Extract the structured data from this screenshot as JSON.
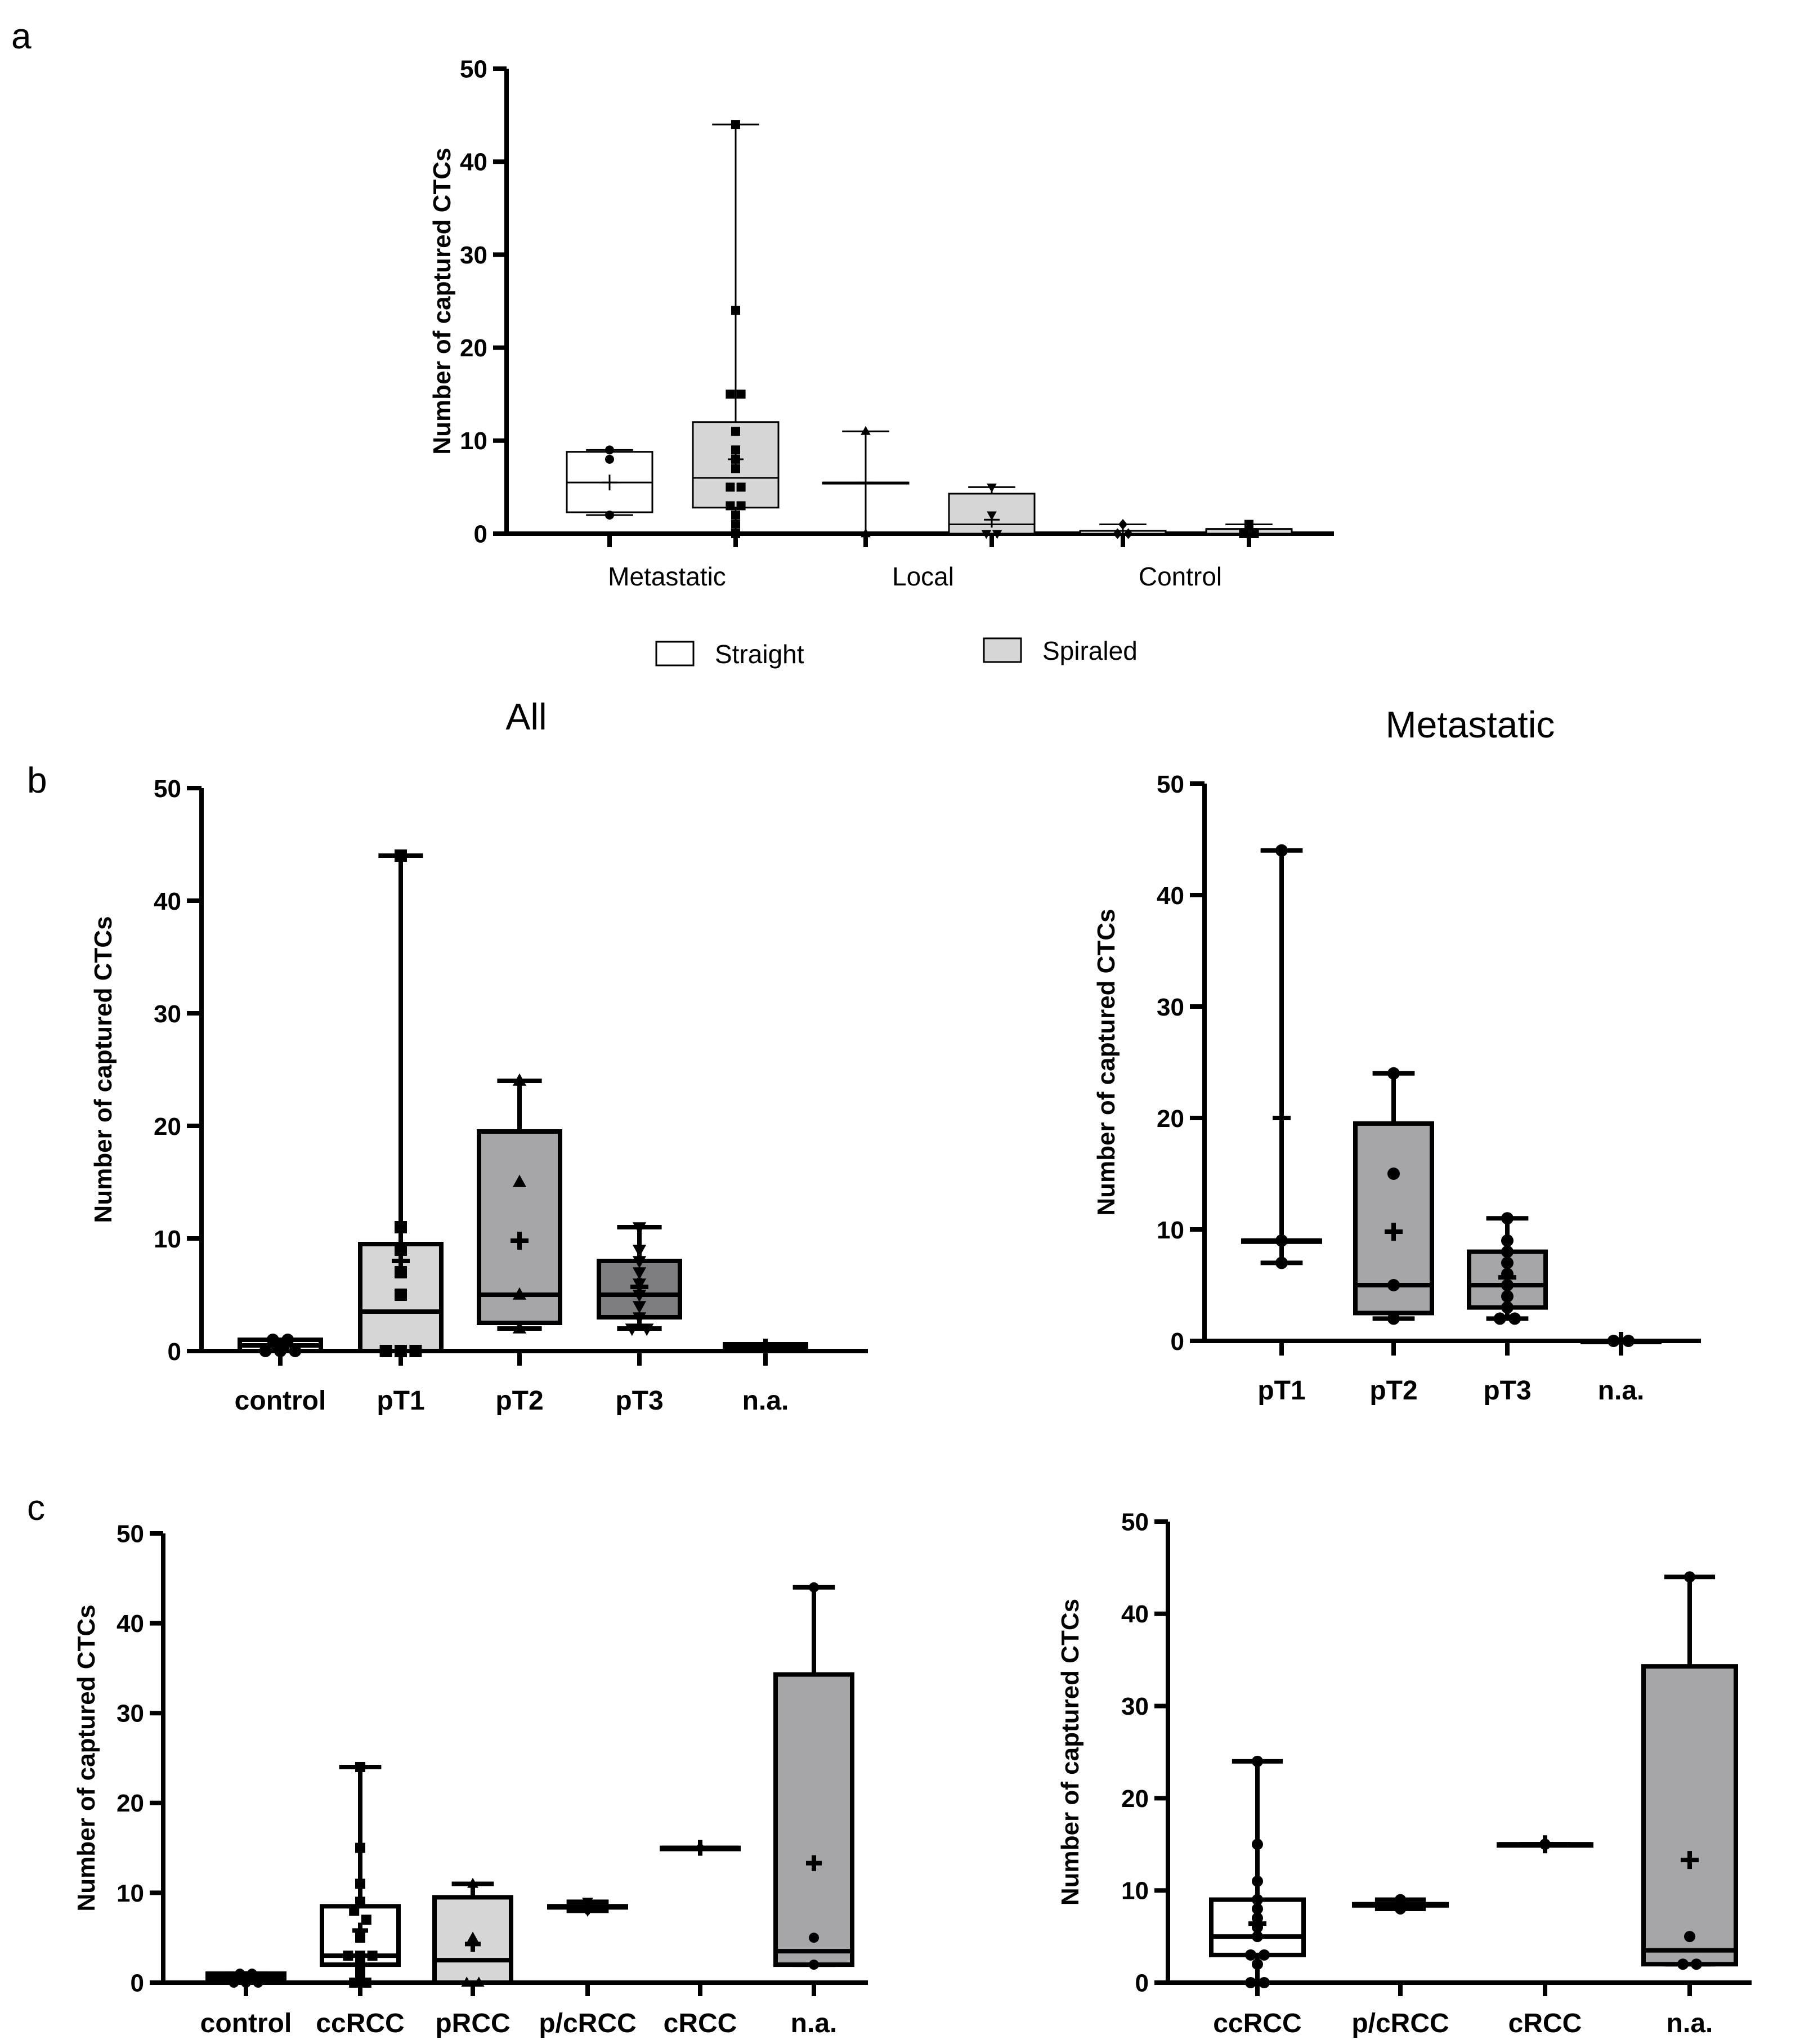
{
  "panels": {
    "a": "a",
    "b": "b",
    "c": "c"
  },
  "subtitles": {
    "all": "All",
    "metastatic": "Metastatic"
  },
  "legend": {
    "straight": "Straight",
    "spiraled": "Spiraled"
  },
  "colors": {
    "white": "#ffffff",
    "light": "#d6d6d6",
    "mid": "#a6a6a8",
    "dark": "#7d7d7f",
    "ink": "#000000"
  },
  "chart_data": [
    {
      "id": "a",
      "type": "box",
      "title": "",
      "ylabel": "Number of captured CTCs",
      "ylim": [
        0,
        50
      ],
      "yticks": [
        0,
        10,
        20,
        30,
        40,
        50
      ],
      "categories": [
        "Metastatic",
        "Local",
        "Control"
      ],
      "series": [
        {
          "name": "Straight",
          "color": "white",
          "marker": "circle",
          "boxes": [
            {
              "min": 2,
              "q1": 2.3,
              "median": 5.5,
              "q3": 8.8,
              "max": 9,
              "mean": 5.5,
              "points": [
                9,
                8,
                2
              ]
            },
            {
              "min": 0,
              "q1": 5.5,
              "median": 5.5,
              "q3": 5.5,
              "max": 11,
              "mean": 5.5,
              "points": [
                11,
                0
              ],
              "marker": "triangle"
            },
            {
              "min": 0,
              "q1": 0,
              "median": 0.3,
              "q3": 0.3,
              "max": 1,
              "mean": 0.3,
              "points": [
                1,
                0,
                0
              ],
              "marker": "diamond"
            }
          ]
        },
        {
          "name": "Spiraled",
          "color": "light",
          "marker": "square",
          "boxes": [
            {
              "min": 0,
              "q1": 2.8,
              "median": 6,
              "q3": 12,
              "max": 44,
              "mean": 8,
              "points": [
                44,
                24,
                15,
                15,
                11,
                9,
                8,
                7,
                5,
                5,
                3,
                3,
                2,
                1,
                0
              ]
            },
            {
              "min": 0,
              "q1": 0,
              "median": 1,
              "q3": 4.3,
              "max": 5,
              "mean": 1.5,
              "points": [
                5,
                2,
                0,
                0
              ],
              "marker": "triangle-down"
            },
            {
              "min": 0,
              "q1": 0,
              "median": 0.5,
              "q3": 0.5,
              "max": 1,
              "mean": 0.5,
              "points": [
                1,
                0,
                0
              ]
            }
          ]
        }
      ]
    },
    {
      "id": "b-all",
      "type": "box",
      "title": "All",
      "ylabel": "Number of captured CTCs",
      "ylim": [
        0,
        50
      ],
      "yticks": [
        0,
        10,
        20,
        30,
        40,
        50
      ],
      "categories": [
        "control",
        "pT1",
        "pT2",
        "pT3",
        "n.a."
      ],
      "boxes": [
        {
          "label": "control",
          "color": "white",
          "marker": "circle",
          "min": 0,
          "q1": 0,
          "median": 0.5,
          "q3": 1,
          "max": 1,
          "mean": 0.4,
          "points": [
            1,
            1,
            0,
            0,
            0
          ]
        },
        {
          "label": "pT1",
          "color": "light",
          "marker": "square",
          "min": 0,
          "q1": 0,
          "median": 3.5,
          "q3": 9.5,
          "max": 44,
          "mean": 8,
          "points": [
            44,
            11,
            9,
            7,
            5,
            0,
            0,
            0
          ]
        },
        {
          "label": "pT2",
          "color": "mid",
          "marker": "triangle",
          "min": 2,
          "q1": 2.5,
          "median": 5,
          "q3": 19.5,
          "max": 24,
          "mean": 9.8,
          "points": [
            24,
            15,
            5,
            2
          ]
        },
        {
          "label": "pT3",
          "color": "dark",
          "marker": "triangle-down",
          "min": 2,
          "q1": 3,
          "median": 5,
          "q3": 8,
          "max": 11,
          "mean": 5.7,
          "points": [
            11,
            9,
            8,
            7,
            6,
            5,
            4,
            3,
            2,
            2
          ]
        },
        {
          "label": "n.a.",
          "color": "dark",
          "marker": "none",
          "min": 0,
          "q1": 0,
          "median": 0.3,
          "q3": 0.6,
          "max": 0.6,
          "mean": 0.3,
          "points": []
        }
      ]
    },
    {
      "id": "b-metastatic",
      "type": "box",
      "title": "Metastatic",
      "ylabel": "Number of captured CTCs",
      "ylim": [
        0,
        50
      ],
      "yticks": [
        0,
        10,
        20,
        30,
        40,
        50
      ],
      "categories": [
        "pT1",
        "pT2",
        "pT3",
        "n.a."
      ],
      "boxes": [
        {
          "label": "pT1",
          "color": "white",
          "marker": "circle",
          "min": 7,
          "q1": 9,
          "median": 9,
          "q3": 9,
          "max": 44,
          "mean": 20,
          "points": [
            44,
            9,
            7
          ]
        },
        {
          "label": "pT2",
          "color": "mid",
          "marker": "circle",
          "min": 2,
          "q1": 2.5,
          "median": 5,
          "q3": 19.5,
          "max": 24,
          "mean": 9.8,
          "points": [
            24,
            15,
            5,
            2
          ]
        },
        {
          "label": "pT3",
          "color": "mid",
          "marker": "circle",
          "min": 2,
          "q1": 3,
          "median": 5,
          "q3": 8,
          "max": 11,
          "mean": 5.7,
          "points": [
            11,
            9,
            8,
            7,
            6,
            5,
            4,
            3,
            2,
            2
          ]
        },
        {
          "label": "n.a.",
          "color": "white",
          "marker": "circle",
          "min": 0,
          "q1": 0,
          "median": 0,
          "q3": 0,
          "max": 0,
          "mean": 0,
          "points": [
            0,
            0
          ]
        }
      ]
    },
    {
      "id": "c-all",
      "type": "box",
      "title": "",
      "ylabel": "Number of captured CTCs",
      "ylim": [
        0,
        50
      ],
      "yticks": [
        0,
        10,
        20,
        30,
        40,
        50
      ],
      "categories": [
        "control",
        "ccRCC",
        "pRCC",
        "p/cRCC",
        "cRCC",
        "n.a."
      ],
      "boxes": [
        {
          "label": "control",
          "color": "white",
          "marker": "circle",
          "min": 0,
          "q1": 0,
          "median": 0.5,
          "q3": 1,
          "max": 1,
          "mean": 0.4,
          "points": [
            1,
            1,
            0,
            0,
            0
          ]
        },
        {
          "label": "ccRCC",
          "color": "white",
          "marker": "square",
          "min": 0,
          "q1": 2,
          "median": 3,
          "q3": 8.5,
          "max": 24,
          "mean": 5.8,
          "points": [
            24,
            15,
            11,
            9,
            8,
            7,
            5,
            3,
            3,
            3,
            2,
            1,
            0,
            0
          ]
        },
        {
          "label": "pRCC",
          "color": "light",
          "marker": "triangle",
          "min": 0,
          "q1": 0,
          "median": 2.5,
          "q3": 9.5,
          "max": 11,
          "mean": 4.3,
          "points": [
            11,
            5,
            0,
            0
          ]
        },
        {
          "label": "p/cRCC",
          "color": "white",
          "marker": "triangle-down",
          "min": 8,
          "q1": 8.5,
          "median": 8.5,
          "q3": 8.5,
          "max": 9,
          "mean": 8.5,
          "points": [
            9,
            8
          ]
        },
        {
          "label": "cRCC",
          "color": "white",
          "marker": "diamond",
          "min": 15,
          "q1": 15,
          "median": 15,
          "q3": 15,
          "max": 15,
          "mean": 15,
          "points": [
            15
          ]
        },
        {
          "label": "n.a.",
          "color": "mid",
          "marker": "circle",
          "min": 2,
          "q1": 2,
          "median": 3.5,
          "q3": 34.3,
          "max": 44,
          "mean": 13.3,
          "points": [
            44,
            5,
            2
          ]
        }
      ]
    },
    {
      "id": "c-metastatic",
      "type": "box",
      "title": "",
      "ylabel": "Number of captured CTCs",
      "ylim": [
        0,
        50
      ],
      "yticks": [
        0,
        10,
        20,
        30,
        40,
        50
      ],
      "categories": [
        "ccRCC",
        "p/cRCC",
        "cRCC",
        "n.a."
      ],
      "boxes": [
        {
          "label": "ccRCC",
          "color": "white",
          "marker": "circle",
          "min": 0,
          "q1": 3,
          "median": 5,
          "q3": 9,
          "max": 24,
          "mean": 6.4,
          "points": [
            24,
            15,
            11,
            9,
            8,
            7,
            6,
            5,
            3,
            3,
            2,
            0,
            0
          ]
        },
        {
          "label": "p/cRCC",
          "color": "white",
          "marker": "circle",
          "min": 8,
          "q1": 8.5,
          "median": 8.5,
          "q3": 8.5,
          "max": 9,
          "mean": 8.5,
          "points": [
            9,
            8
          ]
        },
        {
          "label": "cRCC",
          "color": "white",
          "marker": "circle",
          "min": 15,
          "q1": 15,
          "median": 15,
          "q3": 15,
          "max": 15,
          "mean": 15,
          "points": [
            15
          ]
        },
        {
          "label": "n.a.",
          "color": "mid",
          "marker": "circle",
          "min": 2,
          "q1": 2,
          "median": 3.5,
          "q3": 34.3,
          "max": 44,
          "mean": 13.3,
          "points": [
            44,
            5,
            2,
            2
          ]
        }
      ]
    }
  ]
}
